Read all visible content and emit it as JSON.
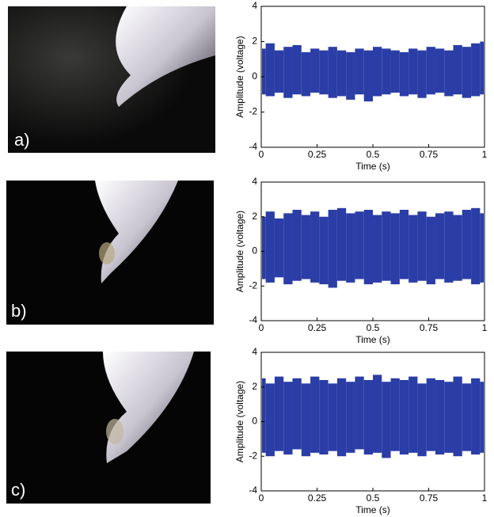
{
  "chart_data": [
    {
      "type": "range",
      "panel_label": "a)",
      "xlabel": "Time (s)",
      "ylabel": "Amplitude (voltage)",
      "color": "#2b3da6",
      "xlim": [
        0,
        1
      ],
      "ylim": [
        -4,
        4
      ],
      "xticks": [
        0,
        0.25,
        0.5,
        0.75,
        1
      ],
      "yticks": [
        -4,
        -2,
        0,
        2,
        4
      ],
      "x": [
        0,
        0.04,
        0.08,
        0.12,
        0.16,
        0.2,
        0.24,
        0.28,
        0.32,
        0.36,
        0.4,
        0.44,
        0.48,
        0.52,
        0.56,
        0.6,
        0.64,
        0.68,
        0.72,
        0.76,
        0.8,
        0.84,
        0.88,
        0.92,
        0.96,
        1
      ],
      "upper": [
        1.6,
        1.9,
        1.5,
        1.7,
        1.8,
        1.4,
        1.6,
        1.5,
        1.7,
        1.5,
        1.4,
        1.6,
        1.5,
        1.7,
        1.6,
        1.5,
        1.4,
        1.6,
        1.5,
        1.7,
        1.6,
        1.5,
        1.8,
        1.7,
        1.9,
        2.0
      ],
      "lower": [
        -1.0,
        -1.1,
        -0.9,
        -1.2,
        -1.0,
        -1.1,
        -0.9,
        -1.0,
        -1.2,
        -1.1,
        -1.3,
        -1.0,
        -1.4,
        -1.1,
        -1.0,
        -0.9,
        -1.1,
        -1.0,
        -1.2,
        -1.0,
        -0.9,
        -1.1,
        -1.0,
        -1.2,
        -1.1,
        -1.0
      ]
    },
    {
      "type": "range",
      "panel_label": "b)",
      "xlabel": "Time (s)",
      "ylabel": "Amplitude (voltage)",
      "color": "#2b3da6",
      "xlim": [
        0,
        1
      ],
      "ylim": [
        -4,
        4
      ],
      "xticks": [
        0,
        0.25,
        0.5,
        0.75,
        1
      ],
      "yticks": [
        -4,
        -2,
        0,
        2,
        4
      ],
      "x": [
        0,
        0.04,
        0.08,
        0.12,
        0.16,
        0.2,
        0.24,
        0.28,
        0.32,
        0.36,
        0.4,
        0.44,
        0.48,
        0.52,
        0.56,
        0.6,
        0.64,
        0.68,
        0.72,
        0.76,
        0.8,
        0.84,
        0.88,
        0.92,
        0.96,
        1
      ],
      "upper": [
        2.0,
        2.3,
        1.9,
        2.2,
        2.4,
        2.1,
        2.3,
        2.0,
        2.4,
        2.5,
        2.2,
        2.3,
        2.4,
        2.1,
        2.3,
        2.2,
        2.4,
        2.1,
        2.3,
        2.0,
        2.2,
        2.3,
        2.1,
        2.4,
        2.5,
        2.2
      ],
      "lower": [
        -1.6,
        -1.8,
        -1.5,
        -1.9,
        -1.7,
        -1.6,
        -1.8,
        -1.9,
        -2.1,
        -1.7,
        -1.8,
        -1.6,
        -1.9,
        -1.8,
        -1.7,
        -1.9,
        -1.6,
        -1.8,
        -1.7,
        -1.9,
        -1.6,
        -1.8,
        -1.7,
        -1.6,
        -1.9,
        -1.8
      ]
    },
    {
      "type": "range",
      "panel_label": "c)",
      "xlabel": "Time (s)",
      "ylabel": "Amplitude (voltage)",
      "color": "#2b3da6",
      "xlim": [
        0,
        1
      ],
      "ylim": [
        -4,
        4
      ],
      "xticks": [
        0,
        0.25,
        0.5,
        0.75,
        1
      ],
      "yticks": [
        -4,
        -2,
        0,
        2,
        4
      ],
      "x": [
        0,
        0.04,
        0.08,
        0.12,
        0.16,
        0.2,
        0.24,
        0.28,
        0.32,
        0.36,
        0.4,
        0.44,
        0.48,
        0.52,
        0.56,
        0.6,
        0.64,
        0.68,
        0.72,
        0.76,
        0.8,
        0.84,
        0.88,
        0.92,
        0.96,
        1
      ],
      "upper": [
        2.5,
        2.2,
        2.6,
        2.3,
        2.5,
        2.2,
        2.6,
        2.4,
        2.2,
        2.5,
        2.3,
        2.6,
        2.4,
        2.7,
        2.3,
        2.5,
        2.4,
        2.6,
        2.2,
        2.5,
        2.4,
        2.3,
        2.6,
        2.2,
        2.5,
        2.3
      ],
      "lower": [
        -1.8,
        -2.0,
        -1.7,
        -1.9,
        -1.6,
        -2.0,
        -1.8,
        -1.9,
        -1.7,
        -2.0,
        -1.8,
        -1.6,
        -1.9,
        -1.8,
        -2.1,
        -1.7,
        -1.9,
        -1.8,
        -2.0,
        -1.7,
        -1.9,
        -1.8,
        -2.0,
        -1.7,
        -1.9,
        -1.8
      ]
    }
  ]
}
